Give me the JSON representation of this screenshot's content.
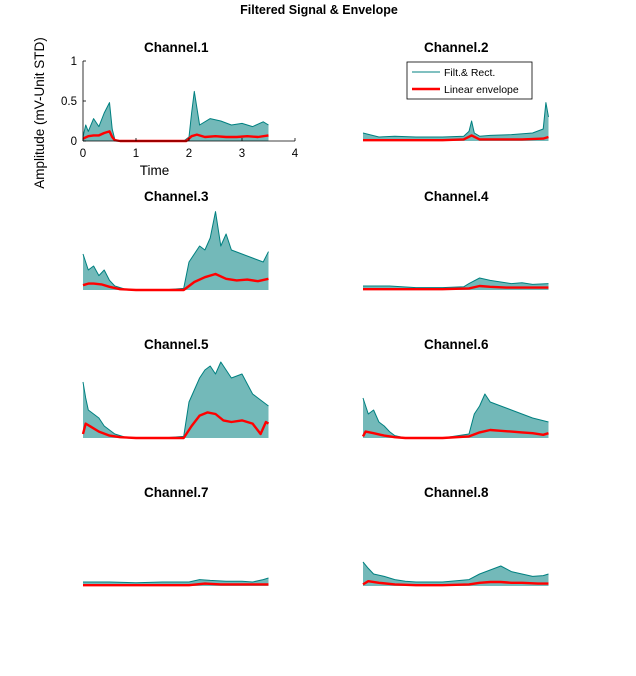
{
  "figure": {
    "title": "Filtered Signal & Envelope"
  },
  "legend": {
    "placement": "inside top-right of Channel.2",
    "entries": [
      {
        "label": "Filt.& Rect.",
        "color": "#008080"
      },
      {
        "label": "Linear envelope",
        "color": "#ff0000"
      }
    ]
  },
  "chart_data": [
    {
      "type": "line",
      "title": "Channel.1",
      "xlabel": "Time",
      "ylabel": "Amplitude (mV-Unit STD)",
      "xlim": [
        0,
        4
      ],
      "ylim": [
        0,
        1
      ],
      "xticks": [
        "0",
        "1",
        "2",
        "3",
        "4"
      ],
      "yticks": [
        "0",
        "0.5",
        "1"
      ],
      "axes_visible": true,
      "x_end": 3.5,
      "series": [
        {
          "name": "Filt.& Rect.",
          "color": "#008080",
          "x": [
            0,
            0.05,
            0.1,
            0.2,
            0.3,
            0.4,
            0.5,
            0.55,
            0.6,
            0.7,
            1.0,
            1.5,
            1.9,
            2.0,
            2.05,
            2.1,
            2.2,
            2.4,
            2.6,
            2.8,
            3.0,
            3.2,
            3.4,
            3.5
          ],
          "y": [
            0.05,
            0.2,
            0.12,
            0.28,
            0.18,
            0.35,
            0.48,
            0.15,
            0.02,
            0.0,
            0.0,
            0.0,
            0.0,
            0.05,
            0.35,
            0.62,
            0.2,
            0.28,
            0.25,
            0.2,
            0.22,
            0.18,
            0.24,
            0.2
          ]
        },
        {
          "name": "Linear envelope",
          "color": "#ff0000",
          "x": [
            0,
            0.1,
            0.2,
            0.3,
            0.4,
            0.5,
            0.55,
            0.6,
            0.7,
            1.0,
            1.5,
            1.95,
            2.05,
            2.15,
            2.3,
            2.5,
            2.7,
            2.9,
            3.1,
            3.3,
            3.5
          ],
          "y": [
            0.03,
            0.06,
            0.07,
            0.07,
            0.1,
            0.12,
            0.05,
            0.01,
            0.0,
            0.0,
            0.0,
            0.0,
            0.06,
            0.08,
            0.05,
            0.06,
            0.05,
            0.05,
            0.06,
            0.05,
            0.07
          ]
        }
      ]
    },
    {
      "type": "line",
      "title": "Channel.2",
      "xlim": [
        0,
        4
      ],
      "ylim": [
        0,
        1
      ],
      "axes_visible": false,
      "x_end": 3.5,
      "series": [
        {
          "name": "Filt.& Rect.",
          "color": "#008080",
          "x": [
            0,
            0.3,
            0.6,
            1.0,
            1.5,
            1.9,
            2.0,
            2.05,
            2.1,
            2.2,
            2.4,
            2.8,
            3.2,
            3.4,
            3.45,
            3.5
          ],
          "y": [
            0.1,
            0.05,
            0.06,
            0.05,
            0.05,
            0.06,
            0.12,
            0.25,
            0.1,
            0.06,
            0.07,
            0.08,
            0.1,
            0.15,
            0.48,
            0.3
          ]
        },
        {
          "name": "Linear envelope",
          "color": "#ff0000",
          "x": [
            0,
            0.5,
            1.0,
            1.5,
            1.9,
            2.05,
            2.2,
            2.5,
            3.0,
            3.4,
            3.5
          ],
          "y": [
            0.01,
            0.01,
            0.01,
            0.01,
            0.02,
            0.07,
            0.02,
            0.02,
            0.02,
            0.03,
            0.05
          ]
        }
      ]
    },
    {
      "type": "line",
      "title": "Channel.3",
      "xlim": [
        0,
        4
      ],
      "ylim": [
        0,
        1
      ],
      "axes_visible": false,
      "x_end": 3.5,
      "series": [
        {
          "name": "Filt.& Rect.",
          "color": "#008080",
          "x": [
            0,
            0.1,
            0.2,
            0.3,
            0.4,
            0.5,
            0.6,
            0.8,
            1.0,
            1.5,
            1.9,
            2.0,
            2.1,
            2.2,
            2.3,
            2.4,
            2.5,
            2.6,
            2.7,
            2.8,
            3.0,
            3.2,
            3.4,
            3.5
          ],
          "y": [
            0.45,
            0.25,
            0.3,
            0.18,
            0.25,
            0.12,
            0.05,
            0.01,
            0.0,
            0.0,
            0.02,
            0.35,
            0.45,
            0.55,
            0.5,
            0.65,
            0.98,
            0.55,
            0.7,
            0.5,
            0.45,
            0.4,
            0.35,
            0.48
          ]
        },
        {
          "name": "Linear envelope",
          "color": "#ff0000",
          "x": [
            0,
            0.1,
            0.2,
            0.35,
            0.5,
            0.7,
            1.0,
            1.5,
            1.9,
            2.1,
            2.3,
            2.5,
            2.7,
            2.9,
            3.1,
            3.3,
            3.5
          ],
          "y": [
            0.06,
            0.08,
            0.08,
            0.07,
            0.04,
            0.01,
            0.0,
            0.0,
            0.0,
            0.1,
            0.16,
            0.2,
            0.14,
            0.12,
            0.13,
            0.11,
            0.14
          ]
        }
      ]
    },
    {
      "type": "line",
      "title": "Channel.4",
      "xlim": [
        0,
        4
      ],
      "ylim": [
        0,
        1
      ],
      "axes_visible": false,
      "x_end": 3.5,
      "series": [
        {
          "name": "Filt.& Rect.",
          "color": "#008080",
          "x": [
            0,
            0.5,
            1.0,
            1.5,
            1.9,
            2.0,
            2.2,
            2.4,
            2.6,
            2.8,
            3.0,
            3.2,
            3.5
          ],
          "y": [
            0.05,
            0.05,
            0.03,
            0.03,
            0.04,
            0.08,
            0.15,
            0.12,
            0.1,
            0.08,
            0.09,
            0.07,
            0.08
          ]
        },
        {
          "name": "Linear envelope",
          "color": "#ff0000",
          "x": [
            0,
            0.5,
            1.0,
            1.5,
            2.0,
            2.2,
            2.4,
            2.7,
            3.0,
            3.5
          ],
          "y": [
            0.01,
            0.01,
            0.01,
            0.01,
            0.02,
            0.05,
            0.04,
            0.03,
            0.03,
            0.03
          ]
        }
      ]
    },
    {
      "type": "line",
      "title": "Channel.5",
      "xlim": [
        0,
        4
      ],
      "ylim": [
        0,
        1
      ],
      "axes_visible": false,
      "x_end": 3.5,
      "series": [
        {
          "name": "Filt.& Rect.",
          "color": "#008080",
          "x": [
            0,
            0.05,
            0.1,
            0.2,
            0.3,
            0.4,
            0.5,
            0.6,
            0.8,
            1.0,
            1.5,
            1.9,
            2.0,
            2.1,
            2.2,
            2.3,
            2.4,
            2.5,
            2.6,
            2.8,
            3.0,
            3.2,
            3.3,
            3.4,
            3.5
          ],
          "y": [
            0.7,
            0.5,
            0.35,
            0.3,
            0.25,
            0.15,
            0.1,
            0.05,
            0.01,
            0.0,
            0.0,
            0.02,
            0.45,
            0.6,
            0.75,
            0.85,
            0.9,
            0.8,
            0.95,
            0.75,
            0.8,
            0.55,
            0.5,
            0.45,
            0.4
          ]
        },
        {
          "name": "Linear envelope",
          "color": "#ff0000",
          "x": [
            0,
            0.05,
            0.15,
            0.3,
            0.5,
            0.7,
            1.0,
            1.5,
            1.9,
            2.05,
            2.2,
            2.35,
            2.5,
            2.65,
            2.8,
            3.0,
            3.2,
            3.35,
            3.45,
            3.5
          ],
          "y": [
            0.05,
            0.18,
            0.14,
            0.08,
            0.03,
            0.01,
            0.0,
            0.0,
            0.0,
            0.15,
            0.28,
            0.32,
            0.3,
            0.22,
            0.2,
            0.22,
            0.18,
            0.05,
            0.2,
            0.18
          ]
        }
      ]
    },
    {
      "type": "line",
      "title": "Channel.6",
      "xlim": [
        0,
        4
      ],
      "ylim": [
        0,
        1
      ],
      "axes_visible": false,
      "x_end": 3.5,
      "series": [
        {
          "name": "Filt.& Rect.",
          "color": "#008080",
          "x": [
            0,
            0.1,
            0.2,
            0.3,
            0.4,
            0.5,
            0.6,
            0.8,
            1.0,
            1.5,
            2.0,
            2.1,
            2.2,
            2.3,
            2.4,
            2.6,
            2.8,
            3.0,
            3.2,
            3.5
          ],
          "y": [
            0.5,
            0.3,
            0.35,
            0.2,
            0.15,
            0.08,
            0.03,
            0.0,
            0.0,
            0.0,
            0.05,
            0.3,
            0.4,
            0.55,
            0.45,
            0.4,
            0.35,
            0.3,
            0.25,
            0.2
          ]
        },
        {
          "name": "Linear envelope",
          "color": "#ff0000",
          "x": [
            0,
            0.05,
            0.2,
            0.4,
            0.6,
            0.8,
            1.0,
            1.5,
            2.0,
            2.2,
            2.4,
            2.6,
            2.8,
            3.0,
            3.2,
            3.4,
            3.5
          ],
          "y": [
            0.02,
            0.08,
            0.06,
            0.03,
            0.01,
            0.0,
            0.0,
            0.0,
            0.02,
            0.07,
            0.1,
            0.09,
            0.08,
            0.07,
            0.06,
            0.04,
            0.06
          ]
        }
      ]
    },
    {
      "type": "line",
      "title": "Channel.7",
      "xlim": [
        0,
        4
      ],
      "ylim": [
        0,
        1
      ],
      "axes_visible": false,
      "x_end": 3.5,
      "series": [
        {
          "name": "Filt.& Rect.",
          "color": "#008080",
          "x": [
            0,
            0.5,
            1.0,
            1.5,
            2.0,
            2.2,
            2.4,
            2.7,
            3.0,
            3.2,
            3.4,
            3.5
          ],
          "y": [
            0.05,
            0.05,
            0.04,
            0.05,
            0.05,
            0.08,
            0.07,
            0.06,
            0.06,
            0.05,
            0.08,
            0.1
          ]
        },
        {
          "name": "Linear envelope",
          "color": "#ff0000",
          "x": [
            0,
            0.5,
            1.0,
            1.5,
            2.0,
            2.3,
            2.6,
            3.0,
            3.5
          ],
          "y": [
            0.01,
            0.01,
            0.01,
            0.01,
            0.01,
            0.03,
            0.02,
            0.02,
            0.02
          ]
        }
      ]
    },
    {
      "type": "line",
      "title": "Channel.8",
      "xlim": [
        0,
        4
      ],
      "ylim": [
        0,
        1
      ],
      "axes_visible": false,
      "x_end": 3.5,
      "series": [
        {
          "name": "Filt.& Rect.",
          "color": "#008080",
          "x": [
            0,
            0.1,
            0.2,
            0.4,
            0.6,
            0.8,
            1.0,
            1.5,
            2.0,
            2.2,
            2.4,
            2.6,
            2.8,
            3.0,
            3.2,
            3.4,
            3.5
          ],
          "y": [
            0.3,
            0.22,
            0.15,
            0.12,
            0.08,
            0.06,
            0.05,
            0.05,
            0.08,
            0.15,
            0.2,
            0.25,
            0.18,
            0.15,
            0.12,
            0.13,
            0.15
          ]
        },
        {
          "name": "Linear envelope",
          "color": "#ff0000",
          "x": [
            0,
            0.1,
            0.3,
            0.6,
            1.0,
            1.5,
            2.0,
            2.2,
            2.4,
            2.6,
            2.8,
            3.0,
            3.3,
            3.5
          ],
          "y": [
            0.02,
            0.06,
            0.04,
            0.02,
            0.01,
            0.01,
            0.02,
            0.04,
            0.05,
            0.05,
            0.04,
            0.04,
            0.03,
            0.03
          ]
        }
      ]
    }
  ]
}
